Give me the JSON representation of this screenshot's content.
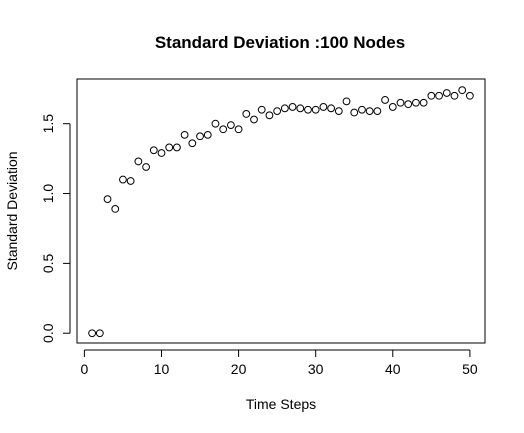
{
  "chart_data": {
    "type": "scatter",
    "title": "Standard Deviation :100 Nodes",
    "xlabel": "Time Steps",
    "ylabel": "Standard Deviation",
    "xlim": [
      -0.96,
      51.96
    ],
    "ylim": [
      -0.07,
      1.82
    ],
    "x_ticks": [
      0,
      10,
      20,
      30,
      40,
      50
    ],
    "y_ticks": [
      0.0,
      0.5,
      1.0,
      1.5
    ],
    "x_tick_labels": [
      "0",
      "10",
      "20",
      "30",
      "40",
      "50"
    ],
    "y_tick_labels": [
      "0.0",
      "0.5",
      "1.0",
      "1.5"
    ],
    "grid": false,
    "legend": "none",
    "marker": "open-circle",
    "series": [
      {
        "x": [
          1,
          2,
          3,
          4,
          5,
          6,
          7,
          8,
          9,
          10,
          11,
          12,
          13,
          14,
          15,
          16,
          17,
          18,
          19,
          20,
          21,
          22,
          23,
          24,
          25,
          26,
          27,
          28,
          29,
          30,
          31,
          32,
          33,
          34,
          35,
          36,
          37,
          38,
          39,
          40,
          41,
          42,
          43,
          44,
          45,
          46,
          47,
          48,
          49,
          50
        ],
        "y": [
          0.0,
          0.0,
          0.96,
          0.89,
          1.1,
          1.09,
          1.23,
          1.19,
          1.31,
          1.29,
          1.33,
          1.33,
          1.42,
          1.36,
          1.41,
          1.42,
          1.5,
          1.46,
          1.49,
          1.46,
          1.57,
          1.53,
          1.6,
          1.56,
          1.59,
          1.61,
          1.62,
          1.61,
          1.6,
          1.6,
          1.62,
          1.61,
          1.59,
          1.66,
          1.58,
          1.6,
          1.59,
          1.59,
          1.67,
          1.62,
          1.65,
          1.64,
          1.65,
          1.65,
          1.7,
          1.7,
          1.72,
          1.7,
          1.74,
          1.7
        ]
      }
    ]
  }
}
